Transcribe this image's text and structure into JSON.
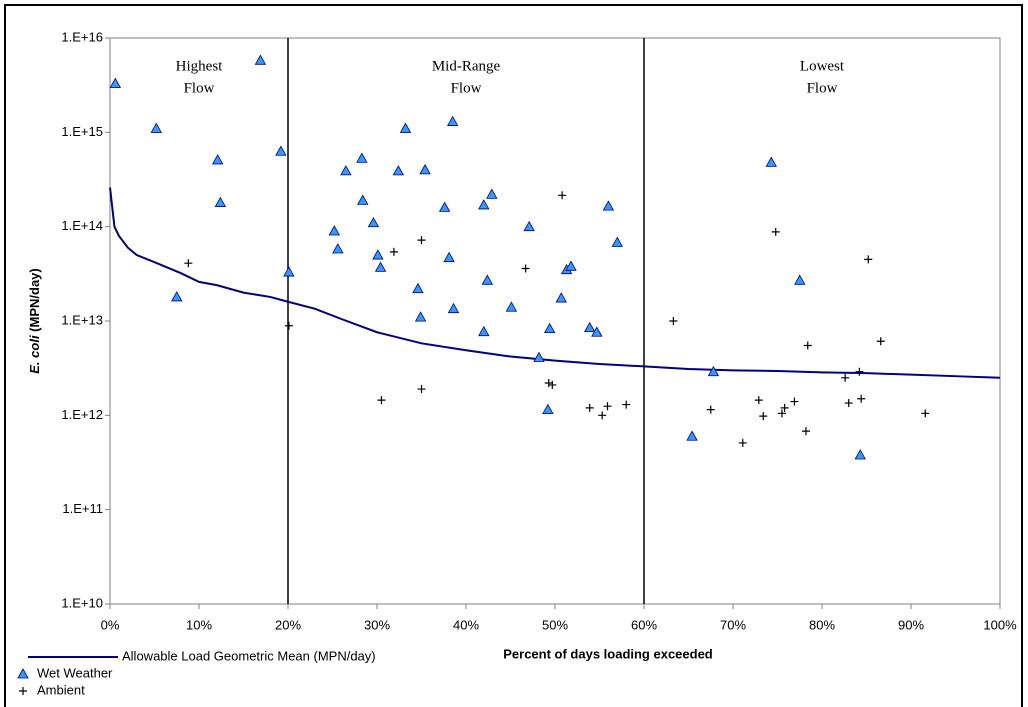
{
  "chart_data": {
    "type": "scatter",
    "xlabel": "Percent of days loading exceeded",
    "ylabel": {
      "species": "E. coli",
      "units": "(MPN/day)"
    },
    "ylog": true,
    "xlim": [
      0,
      100
    ],
    "ylim": [
      10000000000.0,
      1e+16
    ],
    "xticks": [
      {
        "value": 0,
        "label": "0%"
      },
      {
        "value": 10,
        "label": "10%"
      },
      {
        "value": 20,
        "label": "20%"
      },
      {
        "value": 30,
        "label": "30%"
      },
      {
        "value": 40,
        "label": "40%"
      },
      {
        "value": 50,
        "label": "50%"
      },
      {
        "value": 60,
        "label": "60%"
      },
      {
        "value": 70,
        "label": "70%"
      },
      {
        "value": 80,
        "label": "80%"
      },
      {
        "value": 90,
        "label": "90%"
      },
      {
        "value": 100,
        "label": "100%"
      }
    ],
    "yticks": [
      {
        "value": 10000000000.0,
        "label": "1.E+10"
      },
      {
        "value": 100000000000.0,
        "label": "1.E+11"
      },
      {
        "value": 1000000000000.0,
        "label": "1.E+12"
      },
      {
        "value": 10000000000000.0,
        "label": "1.E+13"
      },
      {
        "value": 100000000000000.0,
        "label": "1.E+14"
      },
      {
        "value": 1000000000000000.0,
        "label": "1.E+15"
      },
      {
        "value": 1e+16,
        "label": "1.E+16"
      }
    ],
    "regions": [
      {
        "label": [
          "Highest",
          "Flow"
        ],
        "from": 0,
        "to": 20
      },
      {
        "label": [
          "Mid-Range",
          "Flow"
        ],
        "from": 20,
        "to": 60
      },
      {
        "label": [
          "Lowest",
          "Flow"
        ],
        "from": 60,
        "to": 100
      }
    ],
    "legend": "lower left",
    "series": [
      {
        "name": "Allowable Load Geometric Mean (MPN/day)",
        "marker": "line",
        "color": "#000080",
        "x": [
          0,
          0.5,
          1,
          2,
          3,
          5,
          8,
          10,
          12,
          15,
          18,
          20,
          23,
          26,
          30,
          35,
          40,
          45,
          50,
          55,
          60,
          65,
          70,
          75,
          80,
          85,
          90,
          95,
          100
        ],
        "values": [
          260000000000000.0,
          100000000000000.0,
          80000000000000.0,
          60000000000000.0,
          50000000000000.0,
          42000000000000.0,
          32000000000000.0,
          26000000000000.0,
          24000000000000.0,
          20000000000000.0,
          18000000000000.0,
          16000000000000.0,
          13500000000000.0,
          10500000000000.0,
          7600000000000.0,
          5800000000000.0,
          4900000000000.0,
          4200000000000.0,
          3800000000000.0,
          3500000000000.0,
          3300000000000.0,
          3100000000000.0,
          3000000000000.0,
          2950000000000.0,
          2850000000000.0,
          2800000000000.0,
          2700000000000.0,
          2600000000000.0,
          2500000000000.0
        ]
      },
      {
        "name": "Wet Weather",
        "marker": "triangle",
        "color": "#3399ff",
        "x": [
          0.6,
          5.2,
          12.1,
          12.4,
          16.9,
          19.2,
          20.1,
          7.5,
          25.2,
          25.6,
          26.5,
          28.3,
          28.4,
          29.6,
          30.1,
          30.4,
          32.4,
          33.2,
          35.4,
          34.6,
          34.9,
          37.6,
          38.1,
          38.5,
          38.6,
          42.0,
          42.9,
          42.4,
          42.0,
          45.1,
          47.1,
          50.7,
          48.2,
          49.2,
          49.4,
          51.3,
          51.8,
          53.9,
          54.7,
          56.0,
          57.0,
          67.8,
          65.4,
          74.3,
          77.5,
          84.3
        ],
        "values": [
          3300000000000000.0,
          1100000000000000.0,
          510000000000000.0,
          180000000000000.0,
          5800000000000000.0,
          630000000000000.0,
          33000000000000.0,
          18000000000000.0,
          90000000000000.0,
          58000000000000.0,
          390000000000000.0,
          530000000000000.0,
          190000000000000.0,
          110000000000000.0,
          50000000000000.0,
          37000000000000.0,
          390000000000000.0,
          1100000000000000.0,
          400000000000000.0,
          22000000000000.0,
          11000000000000.0,
          160000000000000.0,
          47000000000000.0,
          1300000000000000.0,
          13500000000000.0,
          170000000000000.0,
          220000000000000.0,
          27000000000000.0,
          7700000000000.0,
          14000000000000.0,
          100000000000000.0,
          17500000000000.0,
          4100000000000.0,
          1150000000000.0,
          8300000000000.0,
          35000000000000.0,
          38000000000000.0,
          8500000000000.0,
          7600000000000.0,
          165000000000000.0,
          68000000000000.0,
          2900000000000.0,
          600000000000.0,
          480000000000000.0,
          27000000000000.0,
          380000000000.0
        ]
      },
      {
        "name": "Ambient",
        "marker": "cross",
        "color": "#000000",
        "x": [
          8.8,
          20.1,
          30.5,
          31.9,
          35.0,
          35.0,
          46.7,
          50.8,
          49.3,
          49.7,
          53.9,
          55.3,
          55.9,
          58.0,
          63.3,
          67.5,
          71.1,
          72.9,
          73.4,
          74.8,
          75.5,
          75.8,
          76.9,
          78.2,
          78.4,
          82.6,
          83.0,
          84.2,
          84.4,
          85.2,
          86.6,
          91.6
        ],
        "values": [
          41000000000000.0,
          8900000000000.0,
          1450000000000.0,
          54000000000000.0,
          72000000000000.0,
          1900000000000.0,
          36000000000000.0,
          215000000000000.0,
          2200000000000.0,
          2100000000000.0,
          1200000000000.0,
          1000000000000.0,
          1250000000000.0,
          1300000000000.0,
          10000000000000.0,
          1150000000000.0,
          510000000000.0,
          1450000000000.0,
          980000000000.0,
          88000000000000.0,
          1050000000000.0,
          1200000000000.0,
          1400000000000.0,
          680000000000.0,
          5500000000000.0,
          2500000000000.0,
          1350000000000.0,
          2900000000000.0,
          1500000000000.0,
          45000000000000.0,
          6100000000000.0,
          1050000000000.0
        ]
      }
    ]
  }
}
